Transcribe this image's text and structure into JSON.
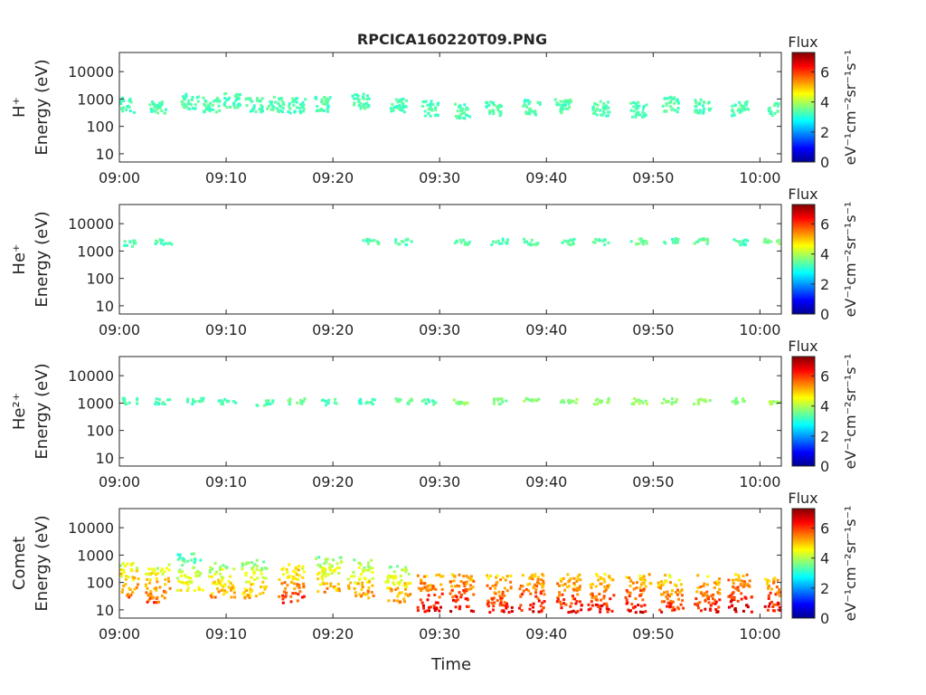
{
  "chart_data": {
    "type": "heatmap",
    "title": "RPCICA160220T09.PNG",
    "xlabel": "Time",
    "x_ticks": [
      "09:00",
      "09:10",
      "09:20",
      "09:30",
      "09:40",
      "09:50",
      "10:00"
    ],
    "xlim_minutes": [
      0,
      62
    ],
    "y_scale": "log",
    "ylim": [
      5,
      50000
    ],
    "y_ticks": [
      {
        "value": 10,
        "label": "10"
      },
      {
        "value": 100,
        "label": "100"
      },
      {
        "value": 1000,
        "label": "1000"
      },
      {
        "value": 10000,
        "label": "10000"
      }
    ],
    "colorbar": {
      "label": "Flux",
      "units": "eV⁻¹cm⁻²sr⁻¹s⁻¹",
      "range": [
        0,
        7.3
      ],
      "ticks": [
        "0",
        "2",
        "4",
        "6"
      ],
      "colormap": "jet"
    },
    "panels": [
      {
        "name": "H+",
        "ylabel_species": "H⁺",
        "ylabel_units": "Energy (eV)",
        "bursts": [
          {
            "t": 0.5,
            "e": 650,
            "f": 3.3
          },
          {
            "t": 3.5,
            "e": 600,
            "f": 3.3
          },
          {
            "t": 6.5,
            "e": 900,
            "f": 3.3
          },
          {
            "t": 8.5,
            "e": 700,
            "f": 3.3
          },
          {
            "t": 10.5,
            "e": 950,
            "f": 3.3
          },
          {
            "t": 12.5,
            "e": 700,
            "f": 3.3
          },
          {
            "t": 14.5,
            "e": 700,
            "f": 3.3
          },
          {
            "t": 16.5,
            "e": 650,
            "f": 3.3
          },
          {
            "t": 19,
            "e": 700,
            "f": 3.3
          },
          {
            "t": 22.5,
            "e": 900,
            "f": 3.3
          },
          {
            "t": 26,
            "e": 700,
            "f": 3.3
          },
          {
            "t": 29,
            "e": 500,
            "f": 3.3
          },
          {
            "t": 32,
            "e": 400,
            "f": 3.3
          },
          {
            "t": 35,
            "e": 500,
            "f": 3.3
          },
          {
            "t": 38.5,
            "e": 550,
            "f": 3.3
          },
          {
            "t": 41.5,
            "e": 600,
            "f": 3.3
          },
          {
            "t": 45,
            "e": 500,
            "f": 3.3
          },
          {
            "t": 48.5,
            "e": 450,
            "f": 3.3
          },
          {
            "t": 51.5,
            "e": 700,
            "f": 3.3
          },
          {
            "t": 54.5,
            "e": 600,
            "f": 3.3
          },
          {
            "t": 58,
            "e": 500,
            "f": 3.3
          },
          {
            "t": 61.5,
            "e": 450,
            "f": 3.3
          }
        ]
      },
      {
        "name": "He+",
        "ylabel_species": "He⁺",
        "ylabel_units": "Energy (eV)",
        "bursts": [
          {
            "t": 1,
            "e": 2100,
            "f": 3.3
          },
          {
            "t": 4,
            "e": 2300,
            "f": 3.3
          },
          {
            "t": 23.5,
            "e": 2500,
            "f": 3.3
          },
          {
            "t": 26.5,
            "e": 2400,
            "f": 3.3
          },
          {
            "t": 32,
            "e": 2400,
            "f": 3.4
          },
          {
            "t": 35.5,
            "e": 2400,
            "f": 3.3
          },
          {
            "t": 38.5,
            "e": 2400,
            "f": 3.4
          },
          {
            "t": 42,
            "e": 2400,
            "f": 3.4
          },
          {
            "t": 45,
            "e": 2400,
            "f": 3.3
          },
          {
            "t": 48.5,
            "e": 2500,
            "f": 3.5
          },
          {
            "t": 51.5,
            "e": 2500,
            "f": 3.3
          },
          {
            "t": 54.5,
            "e": 2500,
            "f": 3.4
          },
          {
            "t": 58,
            "e": 2300,
            "f": 3.3
          },
          {
            "t": 61,
            "e": 2400,
            "f": 3.6
          }
        ]
      },
      {
        "name": "He2+",
        "ylabel_species": "He²⁺",
        "ylabel_units": "Energy (eV)",
        "bursts": [
          {
            "t": 1,
            "e": 1300,
            "f": 3.3
          },
          {
            "t": 4,
            "e": 1300,
            "f": 3.3
          },
          {
            "t": 7,
            "e": 1300,
            "f": 3.3
          },
          {
            "t": 10,
            "e": 1200,
            "f": 3.3
          },
          {
            "t": 13.5,
            "e": 1100,
            "f": 3.3
          },
          {
            "t": 16.5,
            "e": 1300,
            "f": 3.5
          },
          {
            "t": 19.5,
            "e": 1200,
            "f": 3.3
          },
          {
            "t": 23,
            "e": 1300,
            "f": 3.3
          },
          {
            "t": 26.5,
            "e": 1300,
            "f": 3.5
          },
          {
            "t": 29,
            "e": 1200,
            "f": 3.3
          },
          {
            "t": 32,
            "e": 1300,
            "f": 3.7
          },
          {
            "t": 35.5,
            "e": 1300,
            "f": 3.6
          },
          {
            "t": 38.5,
            "e": 1300,
            "f": 3.7
          },
          {
            "t": 42,
            "e": 1300,
            "f": 3.7
          },
          {
            "t": 45,
            "e": 1300,
            "f": 3.8
          },
          {
            "t": 48.5,
            "e": 1300,
            "f": 3.8
          },
          {
            "t": 51.5,
            "e": 1300,
            "f": 3.7
          },
          {
            "t": 54.5,
            "e": 1300,
            "f": 3.8
          },
          {
            "t": 58,
            "e": 1300,
            "f": 3.7
          },
          {
            "t": 61.5,
            "e": 1300,
            "f": 3.9
          }
        ]
      },
      {
        "name": "Comet",
        "ylabel_species": "Comet",
        "ylabel_units": "Energy (eV)",
        "bursts": [
          {
            "t": 0.5,
            "e": 120,
            "f": 5.0
          },
          {
            "t": 3.5,
            "e": 100,
            "f": 5.0
          },
          {
            "t": 6.5,
            "e": 250,
            "f": 4.0
          },
          {
            "t": 9.5,
            "e": 120,
            "f": 4.6
          },
          {
            "t": 12.5,
            "e": 150,
            "f": 4.4
          },
          {
            "t": 16,
            "e": 100,
            "f": 5.3
          },
          {
            "t": 19.5,
            "e": 200,
            "f": 4.5
          },
          {
            "t": 22.5,
            "e": 150,
            "f": 4.6
          },
          {
            "t": 26,
            "e": 100,
            "f": 4.7
          },
          {
            "t": 29,
            "e": 45,
            "f": 5.8
          },
          {
            "t": 32,
            "e": 45,
            "f": 5.8
          },
          {
            "t": 35.5,
            "e": 45,
            "f": 5.6
          },
          {
            "t": 38.5,
            "e": 45,
            "f": 5.7
          },
          {
            "t": 42,
            "e": 45,
            "f": 5.6
          },
          {
            "t": 45,
            "e": 45,
            "f": 5.6
          },
          {
            "t": 48.5,
            "e": 45,
            "f": 5.7
          },
          {
            "t": 51.5,
            "e": 45,
            "f": 5.5
          },
          {
            "t": 55,
            "e": 45,
            "f": 5.6
          },
          {
            "t": 58,
            "e": 45,
            "f": 6.0
          },
          {
            "t": 61.5,
            "e": 45,
            "f": 5.7
          }
        ]
      }
    ]
  }
}
